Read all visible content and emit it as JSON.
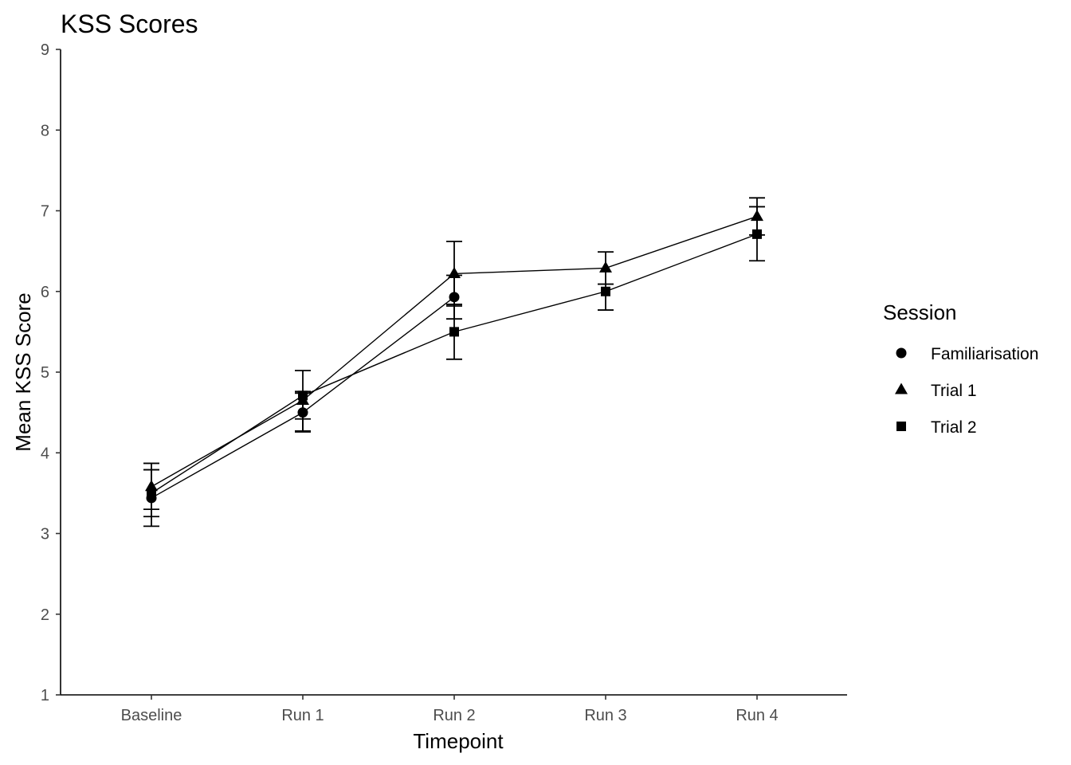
{
  "chart_data": {
    "type": "line",
    "title": "KSS Scores",
    "xlabel": "Timepoint",
    "ylabel": "Mean KSS Score",
    "categories": [
      "Baseline",
      "Run 1",
      "Run 2",
      "Run 3",
      "Run 4"
    ],
    "ylim": [
      1,
      9
    ],
    "yticks": [
      1,
      2,
      3,
      4,
      5,
      6,
      7,
      8,
      9
    ],
    "grid": false,
    "legend": {
      "title": "Session",
      "placement": "right"
    },
    "series": [
      {
        "name": "Familiarisation",
        "marker": "circle",
        "values": [
          3.44,
          4.5,
          5.93,
          null,
          null
        ],
        "error_lower": [
          3.09,
          4.26,
          5.66,
          null,
          null
        ],
        "error_upper": [
          3.79,
          4.74,
          6.2,
          null,
          null
        ]
      },
      {
        "name": "Trial 1",
        "marker": "triangle",
        "values": [
          3.58,
          4.65,
          6.22,
          6.29,
          6.93
        ],
        "error_lower": [
          3.3,
          4.27,
          5.82,
          6.09,
          6.7
        ],
        "error_upper": [
          3.87,
          5.02,
          6.62,
          6.49,
          7.16
        ]
      },
      {
        "name": "Trial 2",
        "marker": "square",
        "values": [
          3.5,
          4.71,
          5.5,
          6.0,
          6.71
        ],
        "error_lower": [
          3.21,
          4.42,
          5.16,
          5.77,
          6.38
        ],
        "error_upper": [
          3.79,
          4.76,
          5.84,
          6.09,
          7.05
        ]
      }
    ]
  }
}
